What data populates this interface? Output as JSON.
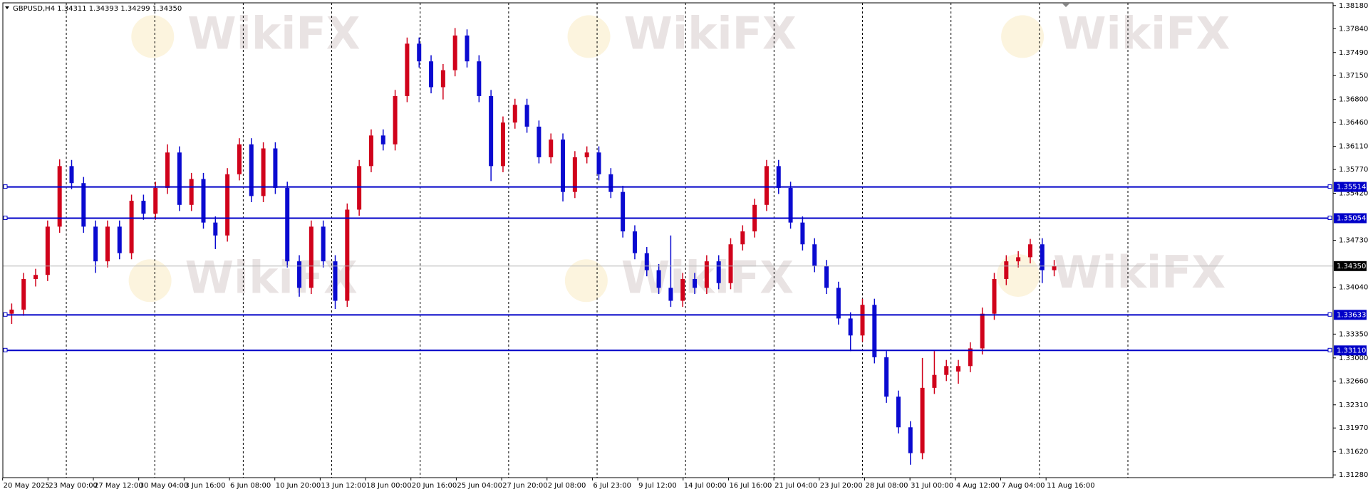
{
  "chart_data": {
    "type": "candlestick",
    "info": "GBPUSD,H4  1.34311 1.34393 1.34299 1.34350",
    "watermark": "WikiFX",
    "up_color": "#d0021b",
    "down_color": "#0a0ad0",
    "ylim": [
      1.3124,
      1.3822
    ],
    "yticks": [
      {
        "value": 1.3818,
        "label": "1.38180"
      },
      {
        "value": 1.3784,
        "label": "1.37840"
      },
      {
        "value": 1.3749,
        "label": "1.37490"
      },
      {
        "value": 1.3715,
        "label": "1.37150"
      },
      {
        "value": 1.368,
        "label": "1.36800"
      },
      {
        "value": 1.3646,
        "label": "1.36460"
      },
      {
        "value": 1.3611,
        "label": "1.36110"
      },
      {
        "value": 1.3577,
        "label": "1.35770"
      },
      {
        "value": 1.3542,
        "label": "1.35420"
      },
      {
        "value": 1.3473,
        "label": "1.34730"
      },
      {
        "value": 1.3404,
        "label": "1.34040"
      },
      {
        "value": 1.3335,
        "label": "1.33350"
      },
      {
        "value": 1.33,
        "label": "1.33000"
      },
      {
        "value": 1.3266,
        "label": "1.32660"
      },
      {
        "value": 1.3231,
        "label": "1.32310"
      },
      {
        "value": 1.3197,
        "label": "1.31970"
      },
      {
        "value": 1.3162,
        "label": "1.31620"
      },
      {
        "value": 1.3128,
        "label": "1.31280"
      }
    ],
    "levels": [
      {
        "value": 1.35514,
        "label": "1.35514"
      },
      {
        "value": 1.35054,
        "label": "1.35054"
      },
      {
        "value": 1.33633,
        "label": "1.33633"
      },
      {
        "value": 1.3311,
        "label": "1.33110"
      }
    ],
    "level_color": "#0000c8",
    "last_price": {
      "value": 1.3435,
      "label": "1.34350"
    },
    "x_labels": [
      "20 May 2025",
      "23 May 00:00",
      "27 May 12:00",
      "30 May 04:00",
      "3 Jun 16:00",
      "6 Jun 08:00",
      "10 Jun 20:00",
      "13 Jun 12:00",
      "18 Jun 00:00",
      "20 Jun 16:00",
      "25 Jun 04:00",
      "27 Jun 20:00",
      "2 Jul 08:00",
      "6 Jul 23:00",
      "9 Jul 12:00",
      "14 Jul 00:00",
      "16 Jul 16:00",
      "21 Jul 04:00",
      "23 Jul 20:00",
      "28 Jul 08:00",
      "31 Jul 00:00",
      "4 Aug 12:00",
      "7 Aug 04:00",
      "11 Aug 16:00"
    ],
    "open": [
      1.3365,
      1.3371,
      1.3416,
      1.3422,
      1.3493,
      1.3582,
      1.3557,
      1.3493,
      1.3442,
      1.3493,
      1.3454,
      1.3531,
      1.3512,
      1.355,
      1.3602,
      1.3525,
      1.3563,
      1.3499,
      1.348,
      1.357,
      1.3614,
      1.3538,
      1.3608,
      1.355,
      1.3442,
      1.3403,
      1.3493,
      1.3442,
      1.3384,
      1.3518,
      1.3582,
      1.3627,
      1.3614,
      1.3685,
      1.3762,
      1.3736,
      1.3698,
      1.3723,
      1.3774,
      1.3736,
      1.3685,
      1.3582,
      1.3646,
      1.3672,
      1.364,
      1.3595,
      1.3621,
      1.3544,
      1.3595,
      1.3602,
      1.357,
      1.3544,
      1.3486,
      1.3454,
      1.3429,
      1.3403,
      1.3384,
      1.3416,
      1.3403,
      1.3442,
      1.341,
      1.3467,
      1.3486,
      1.3525,
      1.3582,
      1.355,
      1.3499,
      1.3467,
      1.3435,
      1.3403,
      1.3358,
      1.3333,
      1.3378,
      1.3301,
      1.3243,
      1.3198,
      1.316,
      1.3256,
      1.3275,
      1.328,
      1.3288,
      1.3314,
      1.3365,
      1.3416,
      1.3442,
      1.3448,
      1.3467,
      1.3429
    ],
    "high": [
      1.338,
      1.3425,
      1.3431,
      1.3502,
      1.3592,
      1.3591,
      1.3566,
      1.3502,
      1.3502,
      1.3502,
      1.354,
      1.354,
      1.3559,
      1.3614,
      1.3611,
      1.3572,
      1.3572,
      1.3508,
      1.3579,
      1.3623,
      1.3623,
      1.3617,
      1.3617,
      1.3559,
      1.3451,
      1.3502,
      1.3502,
      1.3451,
      1.3527,
      1.3591,
      1.3636,
      1.3636,
      1.3694,
      1.3771,
      1.3771,
      1.3745,
      1.3732,
      1.3785,
      1.3783,
      1.3745,
      1.3694,
      1.3655,
      1.3681,
      1.3681,
      1.3649,
      1.363,
      1.363,
      1.3604,
      1.3611,
      1.3611,
      1.3579,
      1.3553,
      1.3495,
      1.3463,
      1.3438,
      1.348,
      1.3425,
      1.3425,
      1.3451,
      1.3451,
      1.3476,
      1.3495,
      1.3534,
      1.3591,
      1.3591,
      1.3559,
      1.3508,
      1.3476,
      1.3444,
      1.3412,
      1.3367,
      1.3387,
      1.3387,
      1.331,
      1.3252,
      1.3207,
      1.33,
      1.331,
      1.3297,
      1.3297,
      1.3323,
      1.3374,
      1.3425,
      1.3451,
      1.3457,
      1.3475,
      1.3476,
      1.3444
    ],
    "low": [
      1.335,
      1.3362,
      1.3405,
      1.3413,
      1.3484,
      1.3548,
      1.3484,
      1.3425,
      1.3433,
      1.3445,
      1.3445,
      1.3503,
      1.3503,
      1.3541,
      1.3516,
      1.3516,
      1.349,
      1.346,
      1.3471,
      1.3561,
      1.3529,
      1.3529,
      1.3541,
      1.3433,
      1.339,
      1.3394,
      1.3433,
      1.3372,
      1.3375,
      1.3509,
      1.3573,
      1.3605,
      1.3605,
      1.3676,
      1.3727,
      1.3689,
      1.368,
      1.3714,
      1.3727,
      1.3676,
      1.356,
      1.3573,
      1.3637,
      1.3631,
      1.3586,
      1.3586,
      1.353,
      1.3535,
      1.3586,
      1.3561,
      1.3535,
      1.3477,
      1.3445,
      1.342,
      1.3394,
      1.3375,
      1.3375,
      1.3394,
      1.3394,
      1.3401,
      1.3401,
      1.3458,
      1.3477,
      1.3516,
      1.3541,
      1.349,
      1.3458,
      1.3426,
      1.3394,
      1.3349,
      1.331,
      1.3324,
      1.3292,
      1.3234,
      1.3189,
      1.3143,
      1.3151,
      1.3247,
      1.3266,
      1.3262,
      1.3279,
      1.3305,
      1.3356,
      1.3407,
      1.3433,
      1.3439,
      1.341,
      1.342
    ],
    "close": [
      1.3371,
      1.3416,
      1.3422,
      1.3493,
      1.3582,
      1.3557,
      1.3493,
      1.3442,
      1.3493,
      1.3454,
      1.3531,
      1.3512,
      1.355,
      1.3602,
      1.3525,
      1.3563,
      1.3499,
      1.348,
      1.357,
      1.3614,
      1.3538,
      1.3608,
      1.355,
      1.3442,
      1.3403,
      1.3493,
      1.3442,
      1.3384,
      1.3518,
      1.3582,
      1.3627,
      1.3614,
      1.3685,
      1.3762,
      1.3736,
      1.3698,
      1.3723,
      1.3774,
      1.3736,
      1.3685,
      1.3582,
      1.3646,
      1.3672,
      1.364,
      1.3595,
      1.3621,
      1.3544,
      1.3595,
      1.3602,
      1.357,
      1.3544,
      1.3486,
      1.3454,
      1.3429,
      1.3403,
      1.3384,
      1.3416,
      1.3403,
      1.3442,
      1.341,
      1.3467,
      1.3486,
      1.3525,
      1.3582,
      1.355,
      1.3499,
      1.3467,
      1.3435,
      1.3403,
      1.3358,
      1.3333,
      1.3378,
      1.3301,
      1.3243,
      1.3198,
      1.316,
      1.3256,
      1.3275,
      1.3288,
      1.3288,
      1.3314,
      1.3365,
      1.3416,
      1.3442,
      1.3448,
      1.3467,
      1.3429,
      1.3435
    ]
  }
}
